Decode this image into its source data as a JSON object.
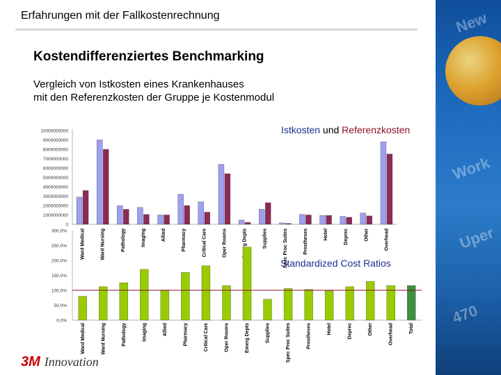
{
  "header": {
    "title": "Erfahrungen mit der Fallkostenrechnung"
  },
  "slide": {
    "title": "Kostendifferenziertes Benchmarking",
    "subtitle_line1": "Vergleich von Istkosten eines Krankenhauses",
    "subtitle_line2": "mit den Referenzkosten der Gruppe je Kostenmodul"
  },
  "legend": {
    "ist": "Istkosten",
    "und": "und",
    "ref": "Referenzkosten"
  },
  "logo": {
    "mark": "3M",
    "word": "Innovation"
  },
  "colors": {
    "ist": "#9e9ff0",
    "ref": "#8b2a57",
    "ratio_bar": "#99cc00",
    "total_bar": "#3f8f3f",
    "ref_line": "#8b1026"
  },
  "chart_data": [
    {
      "type": "bar",
      "title": "Istkosten und Referenzkosten",
      "ylim": [
        0,
        10000000000
      ],
      "yticks": [
        "0",
        "1000000000",
        "2000000000",
        "3000000000",
        "4000000000",
        "5000000000",
        "6000000000",
        "7000000000",
        "8000000000",
        "9000000000",
        "10000000000"
      ],
      "categories": [
        "Ward Medical",
        "Ward Nursing",
        "Pathology",
        "Imaging",
        "Allied",
        "Pharmacy",
        "Critical Care",
        "Oper Rooms",
        "Emerg Depts",
        "Supplies",
        "Spec Proc Suites",
        "Prostheses",
        "Hotel",
        "Deprec",
        "Other",
        "Overhead"
      ],
      "series": [
        {
          "name": "Istkosten",
          "values": [
            2900000000,
            9000000000,
            2000000000,
            1800000000,
            1000000000,
            3200000000,
            2400000000,
            6400000000,
            450000000,
            1600000000,
            150000000,
            1050000000,
            950000000,
            850000000,
            1200000000,
            8800000000
          ]
        },
        {
          "name": "Referenzkosten",
          "values": [
            3600000000,
            8000000000,
            1600000000,
            1050000000,
            1000000000,
            2000000000,
            1300000000,
            5400000000,
            200000000,
            2300000000,
            100000000,
            1000000000,
            950000000,
            750000000,
            900000000,
            7500000000
          ]
        }
      ]
    },
    {
      "type": "bar",
      "title": "Standardized Cost Ratios",
      "ylim": [
        0,
        300
      ],
      "yticks": [
        "0,0%",
        "50,0%",
        "100,0%",
        "150,0%",
        "200,0%",
        "250,0%",
        "300,0%"
      ],
      "reference_line": 100,
      "categories": [
        "Ward Medical",
        "Ward Nursing",
        "Pathology",
        "Imaging",
        "Allied",
        "Pharmacy",
        "Critical Care",
        "Oper Rooms",
        "Emerg Depts",
        "Supplies",
        "Spec Proc Suites",
        "Prostheses",
        "Hotel",
        "Deprec",
        "Other",
        "Overhead",
        "Total"
      ],
      "values": [
        80,
        112,
        125,
        170,
        101,
        160,
        182,
        116,
        245,
        70,
        106,
        103,
        98,
        112,
        130,
        116,
        116
      ]
    }
  ]
}
